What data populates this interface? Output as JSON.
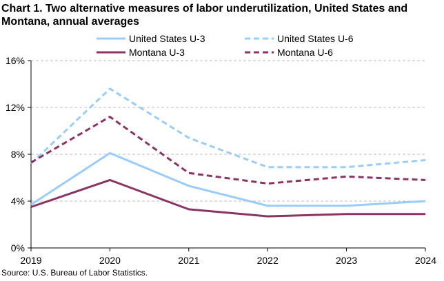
{
  "title": "Chart 1. Two alternative measures of labor underutilization, United States and Montana, annual averages",
  "source": "Source: U.S. Bureau of Labor Statistics.",
  "colors": {
    "us": "#99ccff",
    "mt": "#8b3464",
    "grid": "#bfbfbf",
    "axis": "#000000"
  },
  "chart_data": {
    "type": "line",
    "x": [
      "2019",
      "2020",
      "2021",
      "2022",
      "2023",
      "2024"
    ],
    "ylim": [
      0,
      16
    ],
    "yticks": [
      0,
      4,
      8,
      12,
      16
    ],
    "ytick_labels": [
      "0%",
      "4%",
      "8%",
      "12%",
      "16%"
    ],
    "ylabel": "",
    "xlabel": "",
    "grid": true,
    "legend": "top",
    "series": [
      {
        "name": "United States U-3",
        "values": [
          3.7,
          8.1,
          5.3,
          3.6,
          3.6,
          4.0
        ],
        "color": "#99ccff",
        "dashed": false
      },
      {
        "name": "United States U-6",
        "values": [
          7.2,
          13.6,
          9.4,
          6.9,
          6.9,
          7.5
        ],
        "color": "#99ccff",
        "dashed": true
      },
      {
        "name": "Montana U-3",
        "values": [
          3.5,
          5.8,
          3.3,
          2.7,
          2.9,
          2.9
        ],
        "color": "#8b3464",
        "dashed": false
      },
      {
        "name": "Montana U-6",
        "values": [
          7.3,
          11.2,
          6.4,
          5.5,
          6.1,
          5.8
        ],
        "color": "#8b3464",
        "dashed": true
      }
    ]
  }
}
